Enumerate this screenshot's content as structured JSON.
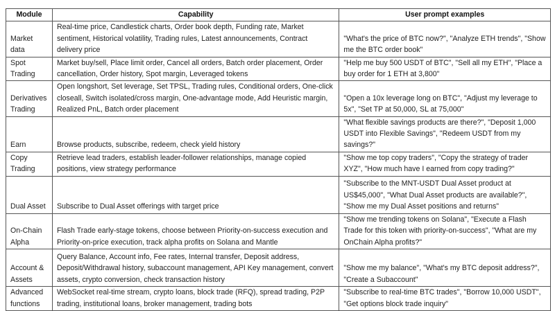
{
  "headers": [
    "Module",
    "Capability",
    "User prompt examples"
  ],
  "rows": [
    {
      "module": "Market data",
      "capability": "Real-time price, Candlestick charts, Order book depth, Funding rate, Market sentiment, Historical volatility, Trading rules, Latest announcements, Contract delivery price",
      "prompts": "\"What's the price of BTC now?\", \"Analyze ETH trends\", \"Show me the BTC order book\""
    },
    {
      "module": "Spot Trading",
      "capability": "Market buy/sell, Place limit order, Cancel all orders, Batch order placement, Order cancellation, Order history, Spot margin, Leveraged tokens",
      "prompts": "\"Help me buy 500 USDT of BTC\", \"Sell all my ETH\", \"Place a buy order for 1 ETH at 3,800\""
    },
    {
      "module": "Derivatives Trading",
      "capability": "Open longshort, Set leverage, Set TPSL, Trading rules, Conditional orders, One-click closeall, Switch isolated/cross margin, One-advantage mode, Add Heuristic margin, Realized PnL, Batch order placement",
      "prompts": "\"Open a 10x leverage long on BTC\", \"Adjust my leverage to 5x\", \"Set TP at 50,000, SL at 75,000\""
    },
    {
      "module": "Earn",
      "capability": "Browse products, subscribe, redeem, check yield history",
      "prompts": "\"What flexible savings products are there?\", \"Deposit 1,000 USDT into Flexible Savings\", \"Redeem USDT from my savings?\""
    },
    {
      "module": "Copy Trading",
      "capability": "Retrieve lead traders, establish leader-follower relationships, manage copied positions, view strategy performance",
      "prompts": "\"Show me top copy traders\", \"Copy the strategy of trader XYZ\", \"How much have I earned from copy trading?\""
    },
    {
      "module": "Dual Asset",
      "capability": "Subscribe to Dual Asset offerings with target price",
      "prompts": "\"Subscribe to the MNT-USDT Dual Asset product at US$45,000\", \"What Dual Asset products are available?\", \"Show me my Dual Asset positions and returns\""
    },
    {
      "module": "On-Chain Alpha",
      "capability": "Flash Trade early-stage tokens, choose between Priority-on-success execution and Priority-on-price execution, track alpha profits on Solana and Mantle",
      "prompts": "\"Show me trending tokens on Solana\", \"Execute a Flash Trade for this token with priority-on-success\", \"What are my OnChain Alpha profits?\""
    },
    {
      "module": "Account & Assets",
      "capability": "Query Balance, Account info, Fee rates, Internal transfer, Deposit address, Deposit/Withdrawal history, subaccount management, API Key management, convert assets, crypto conversion, check transaction history",
      "prompts": "\"Show me my balance\", \"What's my BTC deposit address?\", \"Create a Subaccount\""
    },
    {
      "module": "Advanced functions",
      "capability": "WebSocket real-time stream, crypto loans, block trade (RFQ), spread trading, P2P trading, institutional loans, broker management, trading bots",
      "prompts": "\"Subscribe to real-time BTC trades\", \"Borrow 10,000 USDT\", \"Get options block trade inquiry\""
    }
  ]
}
